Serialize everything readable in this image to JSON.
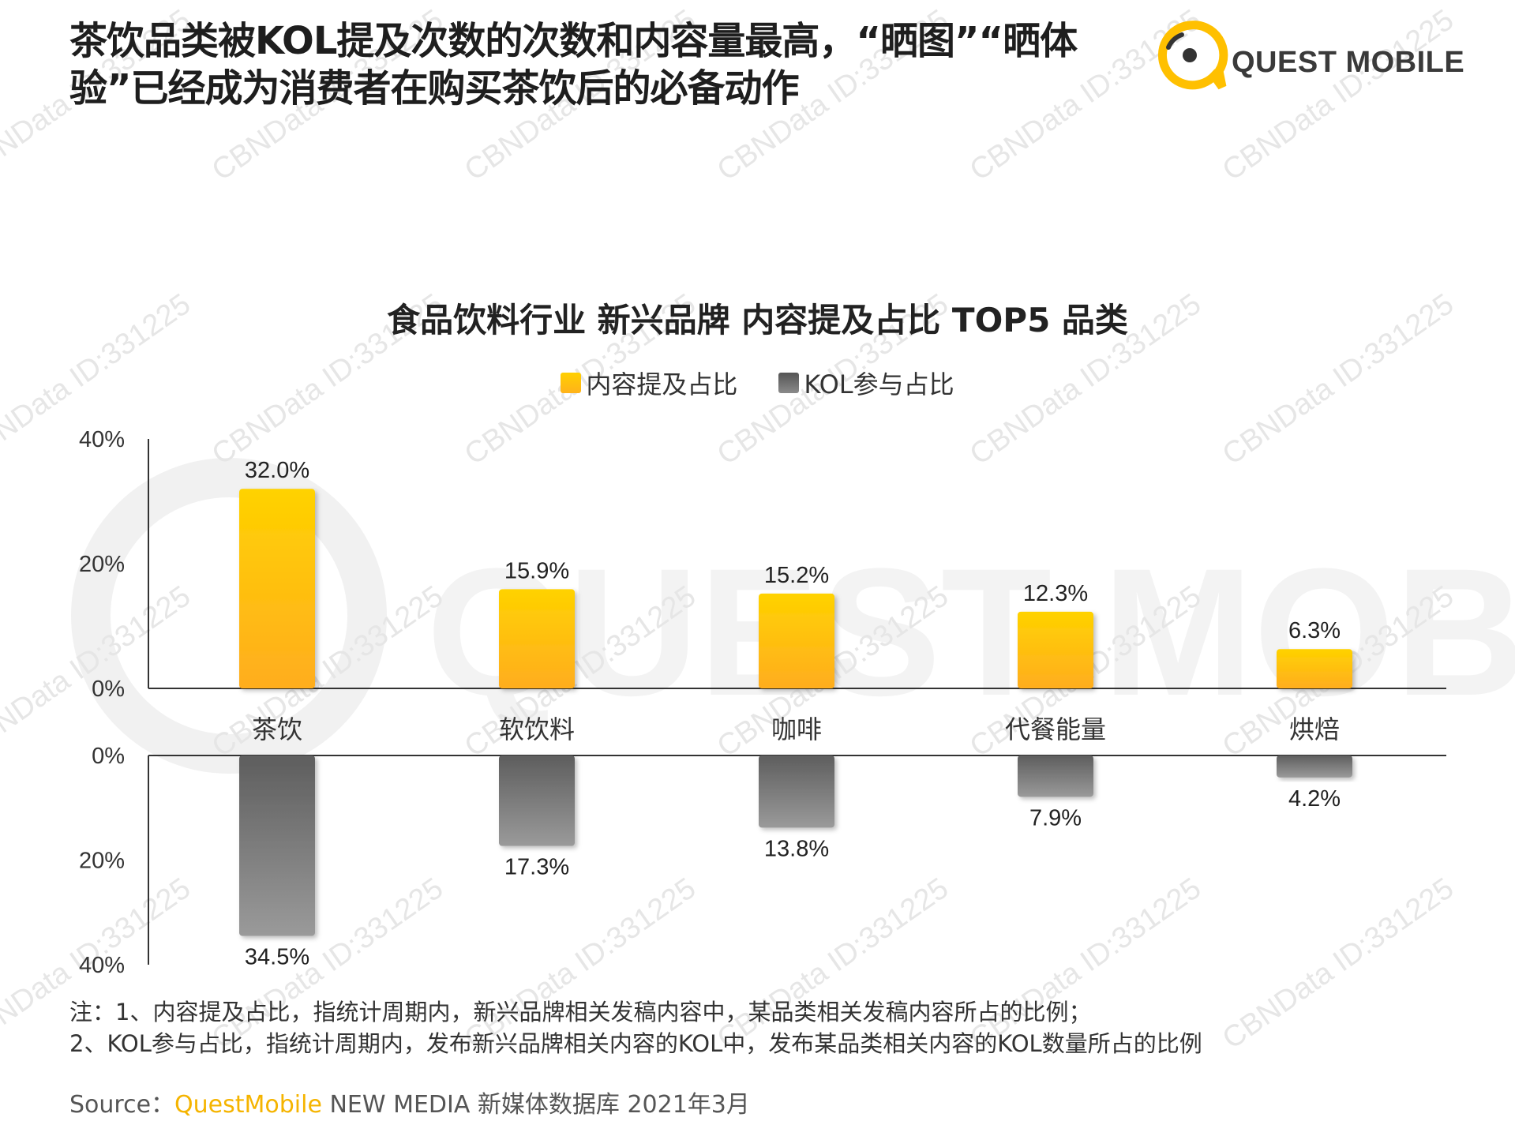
{
  "title": "茶饮品类被KOL提及次数的次数和内容量最高，“晒图”“晒体验”已经成为消费者在购买茶饮后的必备动作",
  "logo": {
    "text": "QUEST MOBILE"
  },
  "watermark": {
    "text": "CBNData ID:331225",
    "background_text": "QUEST MOBILE"
  },
  "colors": {
    "accent_yellow": "#ffc000",
    "accent_gray": "#6f6f6f"
  },
  "chart_data": {
    "type": "bar",
    "title": "食品饮料行业 新兴品牌 内容提及占比 TOP5 品类",
    "categories": [
      "茶饮",
      "软饮料",
      "咖啡",
      "代餐能量",
      "烘焙"
    ],
    "series": [
      {
        "name": "内容提及占比",
        "values": [
          32.0,
          15.9,
          15.2,
          12.3,
          6.3
        ],
        "labels": [
          "32.0%",
          "15.9%",
          "15.2%",
          "12.3%",
          "6.3%"
        ]
      },
      {
        "name": "KOL参与占比",
        "values": [
          34.5,
          17.3,
          13.8,
          7.9,
          4.2
        ],
        "labels": [
          "34.5%",
          "17.3%",
          "13.8%",
          "7.9%",
          "4.2%"
        ]
      }
    ],
    "upper_axis": {
      "ticks": [
        "0%",
        "20%",
        "40%"
      ],
      "tick_values": [
        0,
        20,
        40
      ],
      "ylim": [
        0,
        40
      ]
    },
    "lower_axis": {
      "ticks": [
        "0%",
        "20%",
        "40%"
      ],
      "tick_values": [
        0,
        20,
        40
      ],
      "ylim": [
        0,
        40
      ],
      "inverted": true
    },
    "legend_position": "top-center",
    "grid": false
  },
  "notes": {
    "line1": "注：1、内容提及占比，指统计周期内，新兴品牌相关发稿内容中，某品类相关发稿内容所占的比例；",
    "line2": "2、KOL参与占比，指统计周期内，发布新兴品牌相关内容的KOL中，发布某品类相关内容的KOL数量所占的比例"
  },
  "source": {
    "label": "Source：",
    "brand": "QuestMobile",
    "rest": " NEW MEDIA 新媒体数据库 2021年3月"
  }
}
